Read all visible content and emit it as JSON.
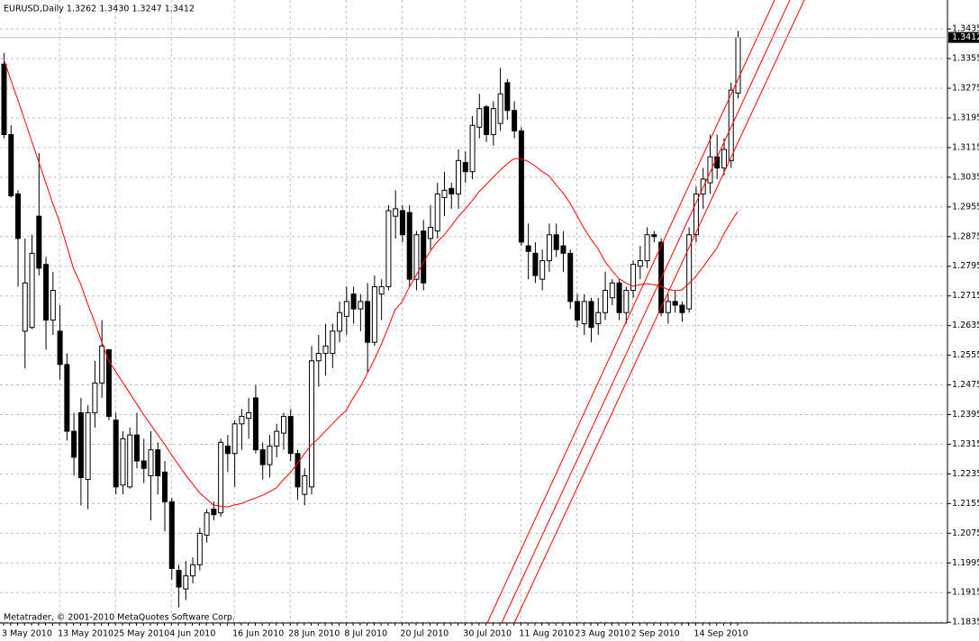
{
  "chart_data": {
    "type": "candlestick",
    "title": "EURUSD,Daily  1.3262 1.3430 1.3247 1.3412",
    "footer": "Metatrader, © 2001-2010 MetaQuotes Software Corp.",
    "categories": [
      "3 May 2010",
      null,
      null,
      null,
      null,
      null,
      null,
      null,
      "13 May 2010",
      null,
      null,
      null,
      null,
      null,
      null,
      null,
      "25 May 2010",
      null,
      null,
      null,
      null,
      null,
      null,
      null,
      "4 Jun 2010",
      null,
      null,
      null,
      null,
      null,
      null,
      null,
      null,
      "16 Jun 2010",
      null,
      null,
      null,
      null,
      null,
      null,
      null,
      "28 Jun 2010",
      null,
      null,
      null,
      null,
      null,
      null,
      null,
      "8 Jul 2010",
      null,
      null,
      null,
      null,
      null,
      null,
      null,
      "20 Jul 2010",
      null,
      null,
      null,
      null,
      null,
      null,
      null,
      null,
      "30 Jul 2010",
      null,
      null,
      null,
      null,
      null,
      null,
      null,
      "11 Aug 2010",
      null,
      null,
      null,
      null,
      null,
      null,
      null,
      "23 Aug 2010",
      null,
      null,
      null,
      null,
      null,
      null,
      null,
      "2 Sep 2010",
      null,
      null,
      null,
      null,
      null,
      null,
      null,
      null,
      "14 Sep 2010",
      null,
      null,
      null,
      null,
      null,
      null
    ],
    "open": [
      1.334,
      1.315,
      1.299,
      1.262,
      1.263,
      1.293,
      1.28,
      1.265,
      1.262,
      1.253,
      1.235,
      1.24,
      1.222,
      1.24,
      1.248,
      1.257,
      1.238,
      1.2205,
      1.22,
      1.234,
      1.227,
      1.223,
      1.23,
      1.224,
      1.216,
      1.1975,
      1.1925,
      1.196,
      1.199,
      1.207,
      1.214,
      1.213,
      1.231,
      1.229,
      1.237,
      1.2385,
      1.244,
      1.23,
      1.226,
      1.231,
      1.2345,
      1.239,
      1.229,
      1.218,
      1.22,
      1.254,
      1.256,
      1.256,
      1.262,
      1.266,
      1.272,
      1.268,
      1.27,
      1.259,
      1.272,
      1.274,
      1.293,
      1.2945,
      1.294,
      1.276,
      1.289,
      1.287,
      1.289,
      1.298,
      1.3005,
      1.299,
      1.3075,
      1.305,
      1.317,
      1.3225,
      1.315,
      1.318,
      1.329,
      1.3215,
      1.316,
      1.285,
      1.283,
      1.276,
      1.281,
      1.288,
      1.285,
      1.283,
      1.27,
      1.264,
      1.27,
      1.264,
      1.267,
      1.271,
      1.275,
      1.267,
      1.273,
      1.2795,
      1.281,
      1.288,
      1.286,
      1.267,
      1.27,
      1.269,
      1.268,
      1.288,
      1.299,
      1.302,
      1.309,
      1.306,
      1.308,
      1.3262
    ],
    "high": [
      1.337,
      1.3175,
      1.3,
      1.287,
      1.288,
      1.31,
      1.282,
      1.278,
      1.269,
      1.256,
      1.24,
      1.244,
      1.242,
      1.254,
      1.265,
      1.257,
      1.24,
      1.235,
      1.236,
      1.24,
      1.233,
      1.235,
      1.232,
      1.227,
      1.217,
      1.199,
      1.2,
      1.201,
      1.209,
      1.214,
      1.216,
      1.233,
      1.234,
      1.238,
      1.241,
      1.244,
      1.2475,
      1.232,
      1.234,
      1.237,
      1.24,
      1.241,
      1.23,
      1.225,
      1.258,
      1.261,
      1.264,
      1.264,
      1.27,
      1.274,
      1.274,
      1.272,
      1.275,
      1.277,
      1.276,
      1.296,
      1.3,
      1.296,
      1.296,
      1.289,
      1.292,
      1.296,
      1.302,
      1.305,
      1.302,
      1.311,
      1.3105,
      1.32,
      1.326,
      1.323,
      1.324,
      1.333,
      1.33,
      1.324,
      1.317,
      1.291,
      1.286,
      1.284,
      1.291,
      1.291,
      1.289,
      1.284,
      1.272,
      1.272,
      1.271,
      1.271,
      1.278,
      1.276,
      1.276,
      1.274,
      1.281,
      1.285,
      1.29,
      1.289,
      1.287,
      1.272,
      1.273,
      1.27,
      1.29,
      1.301,
      1.306,
      1.315,
      1.315,
      1.314,
      1.329,
      1.343
    ],
    "low": [
      1.314,
      1.298,
      1.274,
      1.252,
      1.2625,
      1.277,
      1.257,
      1.261,
      1.249,
      1.2325,
      1.223,
      1.215,
      1.214,
      1.236,
      1.244,
      1.238,
      1.218,
      1.218,
      1.2195,
      1.225,
      1.221,
      1.211,
      1.218,
      1.208,
      1.195,
      1.1875,
      1.1895,
      1.194,
      1.1975,
      1.205,
      1.211,
      1.212,
      1.224,
      1.22,
      1.23,
      1.233,
      1.229,
      1.222,
      1.2225,
      1.228,
      1.23,
      1.227,
      1.2165,
      1.215,
      1.218,
      1.247,
      1.25,
      1.252,
      1.259,
      1.261,
      1.264,
      1.262,
      1.251,
      1.258,
      1.265,
      1.273,
      1.287,
      1.286,
      1.274,
      1.273,
      1.273,
      1.284,
      1.287,
      1.293,
      1.295,
      1.295,
      1.302,
      1.303,
      1.314,
      1.313,
      1.312,
      1.316,
      1.319,
      1.314,
      1.285,
      1.276,
      1.275,
      1.273,
      1.278,
      1.282,
      1.278,
      1.268,
      1.263,
      1.261,
      1.259,
      1.261,
      1.265,
      1.269,
      1.265,
      1.264,
      1.271,
      1.276,
      1.279,
      1.286,
      1.266,
      1.264,
      1.267,
      1.2645,
      1.267,
      1.286,
      1.295,
      1.299,
      1.303,
      1.304,
      1.306,
      1.3247
    ],
    "close": [
      1.315,
      1.2985,
      1.287,
      1.275,
      1.283,
      1.279,
      1.265,
      1.273,
      1.253,
      1.235,
      1.228,
      1.2225,
      1.24,
      1.248,
      1.258,
      1.239,
      1.22,
      1.233,
      1.234,
      1.227,
      1.225,
      1.23,
      1.223,
      1.216,
      1.198,
      1.193,
      1.196,
      1.199,
      1.2075,
      1.213,
      1.2125,
      1.232,
      1.229,
      1.237,
      1.239,
      1.24,
      1.23,
      1.226,
      1.231,
      1.235,
      1.239,
      1.229,
      1.22,
      1.223,
      1.254,
      1.256,
      1.258,
      1.262,
      1.267,
      1.27,
      1.268,
      1.27,
      1.259,
      1.274,
      1.274,
      1.2945,
      1.295,
      1.288,
      1.276,
      1.288,
      1.275,
      1.29,
      1.299,
      1.3,
      1.299,
      1.308,
      1.305,
      1.3175,
      1.322,
      1.315,
      1.322,
      1.326,
      1.3215,
      1.316,
      1.286,
      1.2835,
      1.277,
      1.281,
      1.288,
      1.284,
      1.283,
      1.27,
      1.265,
      1.27,
      1.263,
      1.267,
      1.273,
      1.275,
      1.267,
      1.273,
      1.28,
      1.281,
      1.288,
      1.2875,
      1.267,
      1.27,
      1.269,
      1.267,
      1.288,
      1.299,
      1.303,
      1.309,
      1.306,
      1.311,
      1.327,
      1.3412
    ],
    "ma": [
      1.3355,
      1.3299,
      1.3246,
      1.319,
      1.3134,
      1.3078,
      1.3022,
      1.2966,
      1.2915,
      1.2852,
      1.2789,
      1.2748,
      1.2695,
      1.2646,
      1.2593,
      1.2542,
      1.2512,
      1.2483,
      1.2454,
      1.2425,
      1.2396,
      1.2369,
      1.2342,
      1.2316,
      1.2287,
      1.226,
      1.2233,
      1.2209,
      1.2185,
      1.2168,
      1.2151,
      1.2148,
      1.2146,
      1.2151,
      1.2155,
      1.2163,
      1.217,
      1.2177,
      1.2187,
      1.2197,
      1.2219,
      1.2238,
      1.2262,
      1.2289,
      1.2313,
      1.233,
      1.235,
      1.2369,
      1.2389,
      1.2406,
      1.244,
      1.2469,
      1.2505,
      1.2542,
      1.2583,
      1.2629,
      1.2678,
      1.2699,
      1.2738,
      1.277,
      1.2804,
      1.2835,
      1.286,
      1.2879,
      1.2903,
      1.2928,
      1.2949,
      1.2971,
      1.2996,
      1.3015,
      1.3034,
      1.3054,
      1.3071,
      1.3085,
      1.3085,
      1.3078,
      1.3066,
      1.3051,
      1.3039,
      1.3015,
      1.2993,
      1.2966,
      1.2932,
      1.2898,
      1.2869,
      1.2843,
      1.2809,
      1.2784,
      1.2762,
      1.275,
      1.2741,
      1.2745,
      1.2748,
      1.2745,
      1.2741,
      1.2733,
      1.2729,
      1.2731,
      1.2748,
      1.2767,
      1.2792,
      1.2818,
      1.2843,
      1.2881,
      1.2913,
      1.2942
    ],
    "ma_color": "#ff0000",
    "up_color": "#ffffff",
    "down_color": "#000000",
    "bid": 1.3412,
    "ylim": [
      1.1833,
      1.3513
    ],
    "yticks": [
      1.3435,
      1.3355,
      1.3275,
      1.3195,
      1.3115,
      1.3035,
      1.2955,
      1.2875,
      1.2795,
      1.2715,
      1.2635,
      1.2555,
      1.2475,
      1.2395,
      1.2315,
      1.2235,
      1.2155,
      1.2075,
      1.1995,
      1.1915,
      1.1835
    ],
    "grid": true
  }
}
